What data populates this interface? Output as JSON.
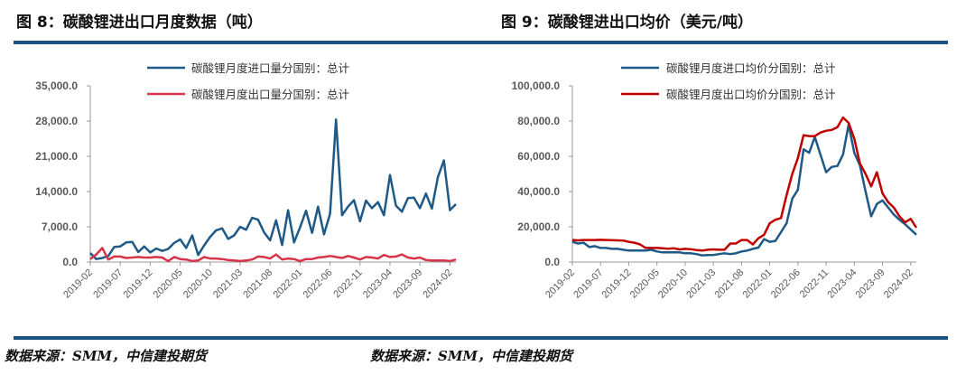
{
  "figures": [
    {
      "title": "图 8：碳酸锂进出口月度数据（吨）",
      "source": "数据来源：SMM，中信建投期货"
    },
    {
      "title": "图 9：碳酸锂进出口均价（美元/吨）",
      "source": "数据来源：SMM，中信建投期货"
    }
  ],
  "chart_data": [
    {
      "type": "line",
      "title": "图 8：碳酸锂进出口月度数据（吨）",
      "x_start": "2019-02",
      "x_end": "2024-03",
      "x_frequency": "monthly",
      "x_tick_labels": [
        "2019-02",
        "2019-07",
        "2019-12",
        "2020-05",
        "2020-10",
        "2021-03",
        "2021-08",
        "2022-01",
        "2022-06",
        "2022-11",
        "2023-04",
        "2023-09",
        "2024-02"
      ],
      "y_tick_labels": [
        "0.0",
        "7,000.0",
        "14,000.0",
        "21,000.0",
        "28,000.0",
        "35,000.0"
      ],
      "ylim": [
        0,
        35000
      ],
      "grid": false,
      "legend_placement": "top",
      "series": [
        {
          "name": "碳酸锂月度进口量分国别：总计",
          "color": "#1f5a87",
          "values": [
            1800,
            600,
            800,
            1200,
            3000,
            3100,
            3900,
            4000,
            2000,
            3100,
            1900,
            2700,
            2200,
            2600,
            3800,
            4500,
            2800,
            5300,
            1400,
            3300,
            5000,
            6300,
            6700,
            4600,
            5300,
            7000,
            6400,
            8800,
            8400,
            5900,
            4300,
            8300,
            3400,
            10300,
            3900,
            6900,
            10200,
            5800,
            11000,
            5500,
            9600,
            28300,
            9300,
            11000,
            12300,
            8100,
            12200,
            10700,
            11900,
            9300,
            17300,
            11200,
            10000,
            12700,
            12800,
            10700,
            13600,
            10600,
            16900,
            20200,
            10300,
            11500
          ]
        },
        {
          "name": "碳酸锂月度出口量分国别：总计",
          "color": "#d6344a",
          "values": [
            600,
            1500,
            2800,
            500,
            1100,
            1100,
            800,
            900,
            1000,
            900,
            900,
            1000,
            900,
            200,
            1000,
            600,
            500,
            200,
            300,
            1000,
            700,
            700,
            600,
            400,
            300,
            200,
            300,
            500,
            1100,
            1000,
            700,
            1500,
            500,
            700,
            600,
            200,
            600,
            600,
            900,
            1000,
            1200,
            1000,
            800,
            1200,
            900,
            500,
            1000,
            900,
            700,
            1400,
            1000,
            1100,
            1500,
            900,
            700,
            900,
            400,
            300,
            300,
            300,
            200,
            500
          ]
        }
      ]
    },
    {
      "type": "line",
      "title": "图 9：碳酸锂进出口均价（美元/吨）",
      "x_start": "2019-02",
      "x_end": "2024-03",
      "x_frequency": "monthly",
      "x_tick_labels": [
        "2019-02",
        "2019-07",
        "2019-12",
        "2020-05",
        "2020-10",
        "2021-03",
        "2021-08",
        "2022-01",
        "2022-06",
        "2022-11",
        "2023-04",
        "2023-09",
        "2024-02"
      ],
      "y_tick_labels": [
        "0.0",
        "20,000.0",
        "40,000.0",
        "60,000.0",
        "80,000.0",
        "100,000.0"
      ],
      "ylim": [
        0,
        100000
      ],
      "grid": false,
      "legend_placement": "top",
      "series": [
        {
          "name": "碳酸锂月度进口均价分国别：总计",
          "color": "#1f5a87",
          "values": [
            11500,
            10500,
            11000,
            8500,
            9000,
            8000,
            8000,
            7500,
            7500,
            7000,
            6500,
            6500,
            6500,
            6500,
            7000,
            6000,
            5500,
            5500,
            5500,
            5500,
            5000,
            5000,
            4500,
            3800,
            4000,
            4000,
            4500,
            5000,
            4500,
            5000,
            6000,
            6500,
            7500,
            8200,
            13000,
            11500,
            12000,
            17000,
            22000,
            36000,
            41000,
            64000,
            62000,
            71000,
            61000,
            51000,
            54000,
            54500,
            61000,
            78000,
            62000,
            55000,
            40000,
            26000,
            33000,
            35000,
            31000,
            27000,
            24000,
            21500,
            18500,
            15500
          ]
        },
        {
          "name": "碳酸锂月度出口均价分国别：总计",
          "color": "#c00000",
          "values": [
            12500,
            12300,
            12500,
            12500,
            12500,
            12600,
            12500,
            12400,
            12300,
            12200,
            11500,
            11000,
            10000,
            8000,
            8000,
            8000,
            7800,
            7600,
            7800,
            7200,
            7500,
            7300,
            6800,
            6500,
            7000,
            7200,
            7000,
            7000,
            10500,
            10500,
            12500,
            12500,
            10000,
            13500,
            15500,
            22000,
            24000,
            25000,
            38000,
            50000,
            59000,
            72000,
            71500,
            71500,
            73500,
            74500,
            75000,
            76500,
            82000,
            79000,
            70000,
            56000,
            50000,
            43000,
            51000,
            39000,
            34000,
            31000,
            26000,
            22500,
            24500,
            19500
          ]
        }
      ]
    }
  ]
}
